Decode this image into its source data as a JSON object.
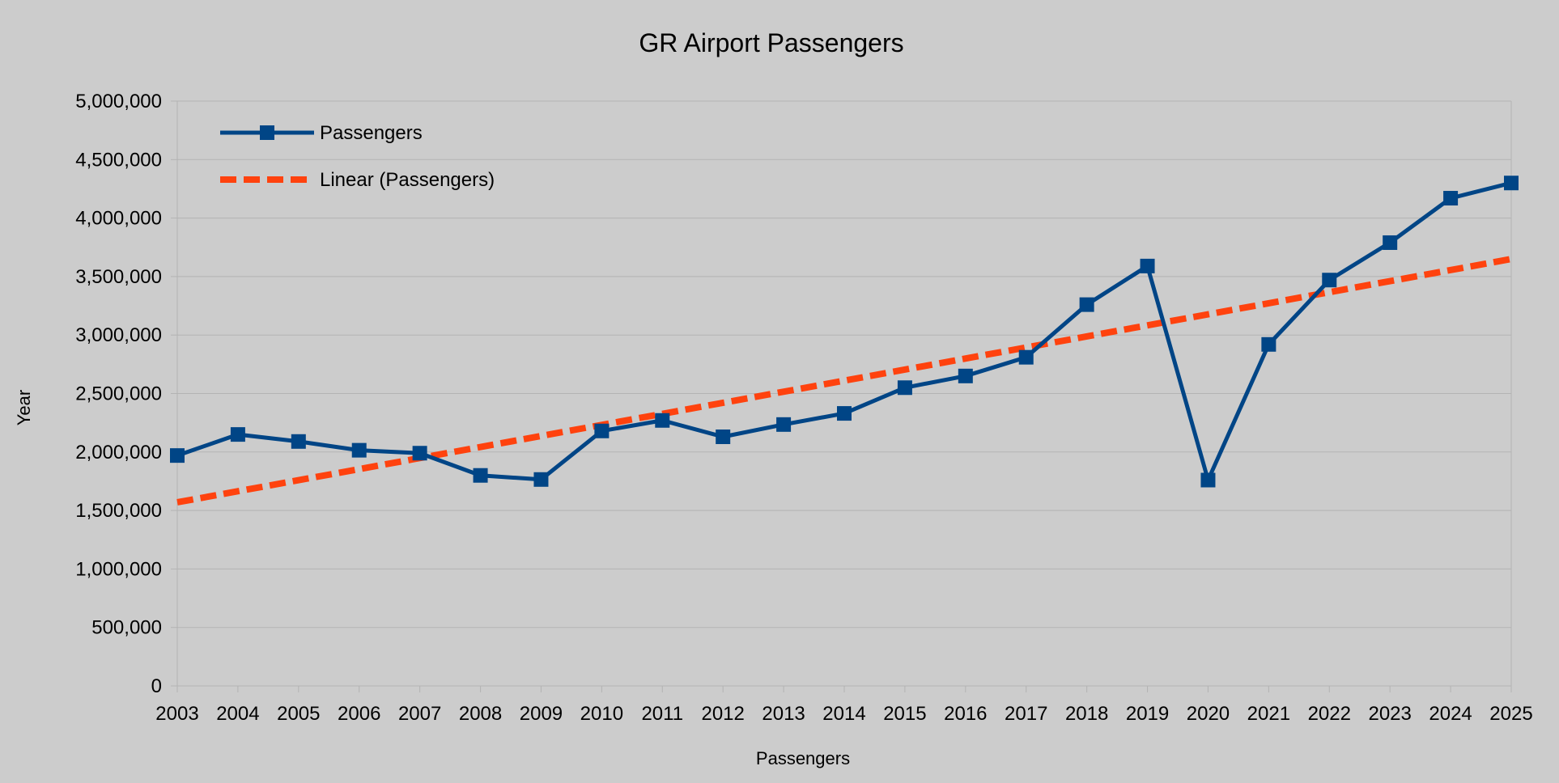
{
  "chart_data": {
    "type": "line",
    "title": "GR Airport Passengers",
    "xlabel": "Passengers",
    "ylabel": "Year",
    "categories": [
      "2003",
      "2004",
      "2005",
      "2006",
      "2007",
      "2008",
      "2009",
      "2010",
      "2011",
      "2012",
      "2013",
      "2014",
      "2015",
      "2016",
      "2017",
      "2018",
      "2019",
      "2020",
      "2021",
      "2022",
      "2023",
      "2024",
      "2025"
    ],
    "series": [
      {
        "name": "Passengers",
        "color": "#004586",
        "marker": "square",
        "values": [
          1970000,
          2150000,
          2090000,
          2015000,
          1990000,
          1800000,
          1765000,
          2180000,
          2270000,
          2130000,
          2235000,
          2330000,
          2550000,
          2650000,
          2810000,
          3260000,
          3590000,
          1760000,
          2920000,
          3470000,
          3790000,
          4170000,
          4300000
        ]
      }
    ],
    "trendline": {
      "name": "Linear (Passengers)",
      "color": "#ff420e",
      "style": "dashed",
      "start_value": 1570000,
      "end_value": 3650000
    },
    "yticks": [
      "0",
      "500,000",
      "1,000,000",
      "1,500,000",
      "2,000,000",
      "2,500,000",
      "3,000,000",
      "3,500,000",
      "4,000,000",
      "4,500,000",
      "5,000,000"
    ],
    "ylim": [
      0,
      5000000
    ],
    "grid": true,
    "legend": "top-left"
  }
}
